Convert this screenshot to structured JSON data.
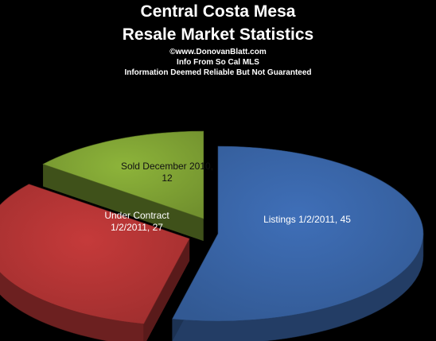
{
  "header": {
    "title_line1": "Central Costa Mesa",
    "title_line2": "Resale Market Statistics",
    "credit": "©www.DonovanBlatt.com",
    "source": "Info  From So Cal MLS",
    "disclaimer": "Information Deemed Reliable But Not Guaranteed"
  },
  "chart_data": {
    "type": "pie",
    "style": "3d-exploded",
    "categories": [
      "Listings 1/2/2011",
      "Under Contract 1/2/2011",
      "Sold December  2010"
    ],
    "values": [
      45,
      27,
      12
    ],
    "colors": [
      "#3f6fb8",
      "#c53a3a",
      "#8db43a"
    ],
    "labels": [
      [
        "Listings 1/2/2011, 45"
      ],
      [
        "Under Contract",
        "1/2/2011, 27"
      ],
      [
        "Sold December  2010,",
        "12"
      ]
    ],
    "legend": "none"
  }
}
